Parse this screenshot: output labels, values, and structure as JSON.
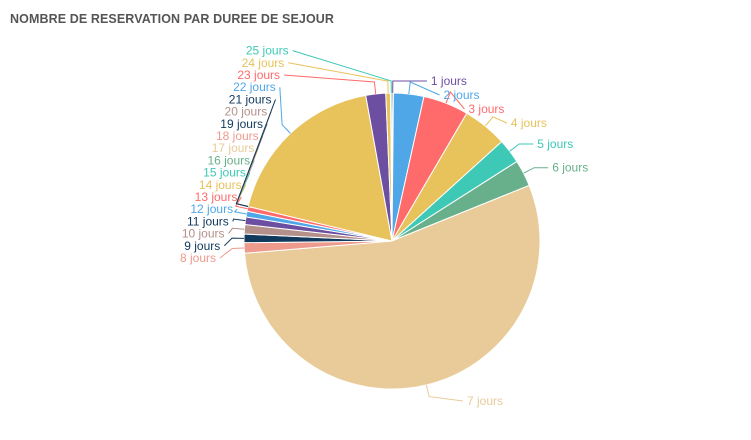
{
  "card": {
    "title": "NOMBRE DE RESERVATION PAR DUREE DE SEJOUR"
  },
  "chart_data": {
    "type": "pie",
    "title": "NOMBRE DE RESERVATION PAR DUREE DE SEJOUR",
    "categories": [
      "1 jours",
      "2 jours",
      "3 jours",
      "4 jours",
      "5 jours",
      "6 jours",
      "7 jours",
      "8 jours",
      "9 jours",
      "10 jours",
      "11 jours",
      "12 jours",
      "13 jours",
      "14 jours",
      "15 jours",
      "16 jours",
      "17 jours",
      "18 jours",
      "19 jours",
      "20 jours",
      "21 jours",
      "22 jours",
      "23 jours",
      "24 jours",
      "25 jours"
    ],
    "values": [
      0.15,
      3.2,
      4.8,
      4.7,
      2.6,
      2.8,
      53.0,
      1.1,
      0.9,
      1.0,
      0.8,
      0.6,
      0.5,
      0.0,
      0.0,
      0.0,
      0.0,
      0.0,
      0.0,
      0.0,
      0.0,
      17.8,
      2.1,
      0.5,
      0.15
    ],
    "colors": [
      "#6c4fa0",
      "#4fa7e8",
      "#ff6b6b",
      "#e8c25b",
      "#3dc9b5",
      "#68b08c",
      "#e8cb99",
      "#ee9a8c",
      "#10395c",
      "#b3908a",
      "#6c4fa0",
      "#4fa7e8",
      "#ff6b6b",
      "#e8c25b",
      "#3dc9b5",
      "#68b08c",
      "#e8cb99",
      "#ee9a8c",
      "#10395c",
      "#b3908a",
      "#10395c",
      "#e8c25b",
      "#6c4fa0",
      "#e8c25b",
      "#3dc9b5"
    ],
    "label_colors": [
      "#6c4fa0",
      "#4fa7e8",
      "#ff6b6b",
      "#e8c25b",
      "#3dc9b5",
      "#68b08c",
      "#e8cb99",
      "#ee9a8c",
      "#10395c",
      "#b3908a",
      "#10395c",
      "#4fa7e8",
      "#ff6b6b",
      "#e8c25b",
      "#3dc9b5",
      "#68b08c",
      "#e8cb99",
      "#ee9a8c",
      "#10395c",
      "#b3908a",
      "#10395c",
      "#4fa7e8",
      "#ff6b6b",
      "#e8c25b",
      "#3dc9b5"
    ],
    "legend": "none",
    "start_angle_deg": 0,
    "direction": "clockwise"
  }
}
